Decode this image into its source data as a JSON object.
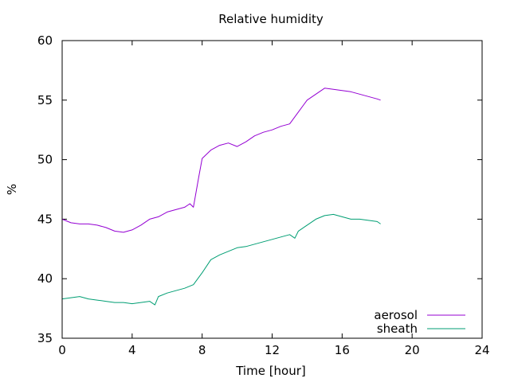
{
  "chart_data": {
    "type": "line",
    "title": "Relative humidity",
    "xlabel": "Time [hour]",
    "ylabel": "%",
    "xlim": [
      0,
      24
    ],
    "ylim": [
      35,
      60
    ],
    "xticks": [
      0,
      4,
      8,
      12,
      16,
      20,
      24
    ],
    "yticks": [
      35,
      40,
      45,
      50,
      55,
      60
    ],
    "grid": false,
    "legend_position": "bottom-right",
    "series": [
      {
        "name": "aerosol",
        "color": "#9400d3",
        "x": [
          0,
          0.5,
          1,
          1.5,
          2,
          2.5,
          3,
          3.5,
          4,
          4.5,
          5,
          5.5,
          6,
          6.5,
          7,
          7.3,
          7.5,
          7.8,
          8,
          8.5,
          9,
          9.5,
          10,
          10.5,
          11,
          11.5,
          12,
          12.5,
          13,
          13.5,
          14,
          14.5,
          15,
          15.5,
          16,
          16.5,
          17,
          17.5,
          18,
          18.2
        ],
        "y": [
          45.0,
          44.7,
          44.6,
          44.6,
          44.5,
          44.3,
          44.0,
          43.9,
          44.1,
          44.5,
          45.0,
          45.2,
          45.6,
          45.8,
          46.0,
          46.3,
          46.0,
          48.5,
          50.1,
          50.8,
          51.2,
          51.4,
          51.1,
          51.5,
          52.0,
          52.3,
          52.5,
          52.8,
          53.0,
          54.0,
          55.0,
          55.5,
          56.0,
          55.9,
          55.8,
          55.7,
          55.5,
          55.3,
          55.1,
          55.0
        ]
      },
      {
        "name": "sheath",
        "color": "#009e73",
        "x": [
          0,
          0.5,
          1,
          1.5,
          2,
          2.5,
          3,
          3.5,
          4,
          4.5,
          5,
          5.3,
          5.5,
          6,
          6.5,
          7,
          7.5,
          8,
          8.5,
          9,
          9.5,
          10,
          10.5,
          11,
          11.5,
          12,
          12.5,
          13,
          13.3,
          13.5,
          14,
          14.5,
          15,
          15.5,
          16,
          16.5,
          17,
          17.5,
          18,
          18.2
        ],
        "y": [
          38.3,
          38.4,
          38.5,
          38.3,
          38.2,
          38.1,
          38.0,
          38.0,
          37.9,
          38.0,
          38.1,
          37.8,
          38.5,
          38.8,
          39.0,
          39.2,
          39.5,
          40.5,
          41.6,
          42.0,
          42.3,
          42.6,
          42.7,
          42.9,
          43.1,
          43.3,
          43.5,
          43.7,
          43.4,
          44.0,
          44.5,
          45.0,
          45.3,
          45.4,
          45.2,
          45.0,
          45.0,
          44.9,
          44.8,
          44.6
        ]
      }
    ]
  }
}
